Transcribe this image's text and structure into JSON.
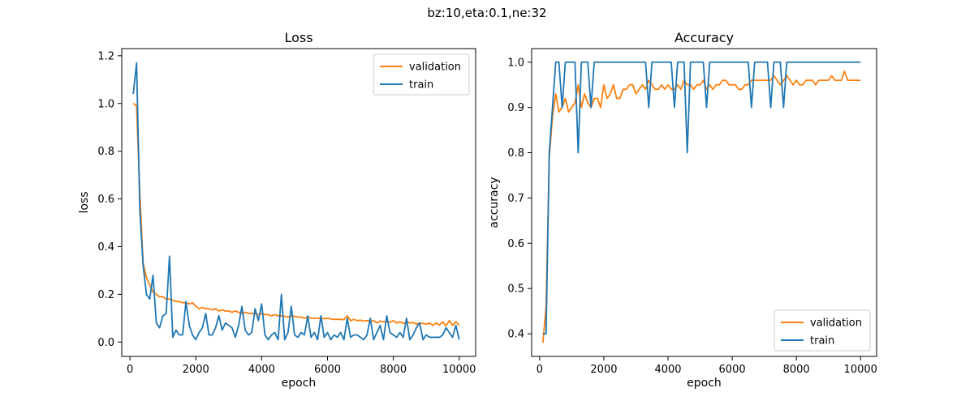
{
  "figure": {
    "suptitle": "bz:10,eta:0.1,ne:32"
  },
  "chart_data": [
    {
      "type": "line",
      "title": "Loss",
      "xlabel": "epoch",
      "ylabel": "loss",
      "xlim": [
        -250,
        10500
      ],
      "ylim": [
        -0.06,
        1.23
      ],
      "xticks": [
        "0",
        "2000",
        "4000",
        "6000",
        "8000",
        "10000"
      ],
      "xtick_values": [
        0,
        2000,
        4000,
        6000,
        8000,
        10000
      ],
      "yticks": [
        "0.0",
        "0.2",
        "0.4",
        "0.6",
        "0.8",
        "1.0",
        "1.2"
      ],
      "ytick_values": [
        0.0,
        0.2,
        0.4,
        0.6,
        0.8,
        1.0,
        1.2
      ],
      "legend_position": "upper right",
      "grid": false,
      "x": [
        100,
        200,
        300,
        400,
        500,
        600,
        700,
        800,
        900,
        1000,
        1100,
        1200,
        1300,
        1400,
        1500,
        1600,
        1700,
        1800,
        1900,
        2000,
        2100,
        2200,
        2300,
        2400,
        2500,
        2600,
        2700,
        2800,
        2900,
        3000,
        3100,
        3200,
        3300,
        3400,
        3500,
        3600,
        3700,
        3800,
        3900,
        4000,
        4100,
        4200,
        4300,
        4400,
        4500,
        4600,
        4700,
        4800,
        4900,
        5000,
        5100,
        5200,
        5300,
        5400,
        5500,
        5600,
        5700,
        5800,
        5900,
        6000,
        6100,
        6200,
        6300,
        6400,
        6500,
        6600,
        6700,
        6800,
        6900,
        7000,
        7100,
        7200,
        7300,
        7400,
        7500,
        7600,
        7700,
        7800,
        7900,
        8000,
        8100,
        8200,
        8300,
        8400,
        8500,
        8600,
        8700,
        8800,
        8900,
        9000,
        9100,
        9200,
        9300,
        9400,
        9500,
        9600,
        9700,
        9800,
        9900,
        10000
      ],
      "series": [
        {
          "name": "validation",
          "color": "#ff7f0e",
          "values": [
            1.0,
            0.99,
            0.62,
            0.33,
            0.27,
            0.24,
            0.21,
            0.2,
            0.19,
            0.19,
            0.18,
            0.18,
            0.175,
            0.17,
            0.17,
            0.165,
            0.165,
            0.16,
            0.165,
            0.15,
            0.14,
            0.145,
            0.14,
            0.14,
            0.135,
            0.14,
            0.13,
            0.135,
            0.13,
            0.13,
            0.125,
            0.13,
            0.125,
            0.12,
            0.125,
            0.12,
            0.12,
            0.118,
            0.115,
            0.12,
            0.115,
            0.115,
            0.11,
            0.115,
            0.11,
            0.11,
            0.108,
            0.105,
            0.11,
            0.108,
            0.105,
            0.105,
            0.1,
            0.105,
            0.1,
            0.1,
            0.1,
            0.1,
            0.098,
            0.1,
            0.097,
            0.095,
            0.096,
            0.095,
            0.094,
            0.11,
            0.09,
            0.095,
            0.09,
            0.092,
            0.088,
            0.09,
            0.087,
            0.09,
            0.08,
            0.088,
            0.085,
            0.087,
            0.083,
            0.09,
            0.08,
            0.085,
            0.078,
            0.085,
            0.08,
            0.082,
            0.075,
            0.08,
            0.078,
            0.075,
            0.08,
            0.07,
            0.08,
            0.072,
            0.085,
            0.068,
            0.09,
            0.07,
            0.085,
            0.07
          ],
          "stroke_width": 1.8
        },
        {
          "name": "train",
          "color": "#1f77b4",
          "values": [
            1.04,
            1.17,
            0.55,
            0.32,
            0.2,
            0.18,
            0.28,
            0.08,
            0.06,
            0.11,
            0.12,
            0.36,
            0.02,
            0.05,
            0.03,
            0.03,
            0.17,
            0.07,
            0.03,
            0.01,
            0.04,
            0.06,
            0.12,
            0.03,
            0.03,
            0.06,
            0.11,
            0.05,
            0.08,
            0.07,
            0.06,
            0.02,
            0.07,
            0.15,
            0.05,
            0.03,
            0.04,
            0.14,
            0.09,
            0.16,
            0.03,
            0.01,
            0.03,
            0.04,
            0.01,
            0.2,
            0.01,
            0.04,
            0.15,
            0.03,
            0.02,
            0.04,
            0.03,
            0.11,
            0.02,
            0.04,
            0.01,
            0.11,
            0.02,
            0.04,
            0.01,
            0.03,
            0.02,
            0.04,
            0.01,
            0.1,
            0.02,
            0.03,
            0.03,
            0.02,
            0.01,
            0.03,
            0.1,
            0.01,
            0.04,
            0.07,
            0.01,
            0.11,
            0.04,
            0.03,
            0.02,
            0.04,
            0.02,
            0.1,
            0.01,
            0.03,
            0.06,
            0.08,
            0.01,
            0.03,
            0.02,
            0.02,
            0.02,
            0.02,
            0.03,
            0.06,
            0.04,
            0.02,
            0.07,
            0.01
          ],
          "stroke_width": 1.8
        }
      ]
    },
    {
      "type": "line",
      "title": "Accuracy",
      "xlabel": "epoch",
      "ylabel": "accuracy",
      "xlim": [
        -250,
        10500
      ],
      "ylim": [
        0.35,
        1.03
      ],
      "xticks": [
        "0",
        "2000",
        "4000",
        "6000",
        "8000",
        "10000"
      ],
      "xtick_values": [
        0,
        2000,
        4000,
        6000,
        8000,
        10000
      ],
      "yticks": [
        "0.4",
        "0.5",
        "0.6",
        "0.7",
        "0.8",
        "0.9",
        "1.0"
      ],
      "ytick_values": [
        0.4,
        0.5,
        0.6,
        0.7,
        0.8,
        0.9,
        1.0
      ],
      "legend_position": "lower right",
      "grid": false,
      "x": [
        100,
        200,
        300,
        400,
        500,
        600,
        700,
        800,
        900,
        1000,
        1100,
        1200,
        1300,
        1400,
        1500,
        1600,
        1700,
        1800,
        1900,
        2000,
        2100,
        2200,
        2300,
        2400,
        2500,
        2600,
        2700,
        2800,
        2900,
        3000,
        3100,
        3200,
        3300,
        3400,
        3500,
        3600,
        3700,
        3800,
        3900,
        4000,
        4100,
        4200,
        4300,
        4400,
        4500,
        4600,
        4700,
        4800,
        4900,
        5000,
        5100,
        5200,
        5300,
        5400,
        5500,
        5600,
        5700,
        5800,
        5900,
        6000,
        6100,
        6200,
        6300,
        6400,
        6500,
        6600,
        6700,
        6800,
        6900,
        7000,
        7100,
        7200,
        7300,
        7400,
        7500,
        7600,
        7700,
        7800,
        7900,
        8000,
        8100,
        8200,
        8300,
        8400,
        8500,
        8600,
        8700,
        8800,
        8900,
        9000,
        9100,
        9200,
        9300,
        9400,
        9500,
        9600,
        9700,
        9800,
        9900,
        10000
      ],
      "series": [
        {
          "name": "validation",
          "color": "#ff7f0e",
          "values": [
            0.38,
            0.46,
            0.79,
            0.88,
            0.93,
            0.89,
            0.9,
            0.92,
            0.89,
            0.9,
            0.91,
            0.95,
            0.9,
            0.93,
            0.91,
            0.9,
            0.92,
            0.92,
            0.9,
            0.95,
            0.92,
            0.93,
            0.95,
            0.92,
            0.92,
            0.94,
            0.94,
            0.95,
            0.95,
            0.93,
            0.94,
            0.95,
            0.94,
            0.96,
            0.95,
            0.94,
            0.94,
            0.95,
            0.94,
            0.95,
            0.94,
            0.94,
            0.95,
            0.94,
            0.96,
            0.95,
            0.95,
            0.94,
            0.95,
            0.95,
            0.96,
            0.94,
            0.95,
            0.94,
            0.95,
            0.95,
            0.96,
            0.96,
            0.95,
            0.95,
            0.95,
            0.94,
            0.94,
            0.95,
            0.95,
            0.96,
            0.96,
            0.96,
            0.96,
            0.96,
            0.96,
            0.96,
            0.97,
            0.96,
            0.95,
            0.96,
            0.97,
            0.96,
            0.95,
            0.96,
            0.95,
            0.95,
            0.96,
            0.96,
            0.96,
            0.95,
            0.96,
            0.96,
            0.96,
            0.96,
            0.97,
            0.96,
            0.96,
            0.96,
            0.98,
            0.96,
            0.96,
            0.96,
            0.96,
            0.96
          ],
          "stroke_width": 1.8
        },
        {
          "name": "train",
          "color": "#1f77b4",
          "values": [
            0.4,
            0.4,
            0.8,
            0.9,
            1.0,
            1.0,
            0.9,
            1.0,
            1.0,
            1.0,
            1.0,
            0.8,
            1.0,
            1.0,
            1.0,
            0.9,
            1.0,
            1.0,
            1.0,
            1.0,
            1.0,
            1.0,
            1.0,
            1.0,
            1.0,
            1.0,
            1.0,
            1.0,
            1.0,
            1.0,
            1.0,
            1.0,
            1.0,
            0.9,
            1.0,
            1.0,
            1.0,
            1.0,
            1.0,
            1.0,
            1.0,
            0.9,
            1.0,
            1.0,
            1.0,
            0.8,
            1.0,
            1.0,
            1.0,
            1.0,
            1.0,
            0.9,
            1.0,
            1.0,
            1.0,
            1.0,
            1.0,
            1.0,
            1.0,
            1.0,
            1.0,
            1.0,
            1.0,
            1.0,
            1.0,
            0.9,
            1.0,
            1.0,
            1.0,
            1.0,
            1.0,
            0.9,
            1.0,
            1.0,
            1.0,
            0.9,
            1.0,
            1.0,
            1.0,
            1.0,
            1.0,
            1.0,
            1.0,
            1.0,
            1.0,
            1.0,
            1.0,
            1.0,
            1.0,
            1.0,
            1.0,
            1.0,
            1.0,
            1.0,
            1.0,
            1.0,
            1.0,
            1.0,
            1.0,
            1.0
          ],
          "stroke_width": 1.8
        }
      ]
    }
  ]
}
